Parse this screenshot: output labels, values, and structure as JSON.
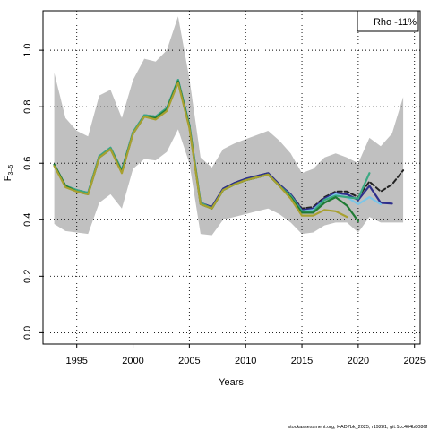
{
  "chart_data": {
    "type": "line",
    "xlabel": "Years",
    "ylabel_main": "F",
    "ylabel_sub": "3–5",
    "legend_text": "Rho -11%",
    "footer": "stockassessment.org, HAD7bk_2025, r19281, git:1cc464b8086f",
    "xlim": [
      1992,
      2025.5
    ],
    "ylim": [
      -0.04,
      1.14
    ],
    "x_ticks": [
      1995,
      2000,
      2005,
      2010,
      2015,
      2020,
      2025
    ],
    "y_ticks": [
      0.0,
      0.2,
      0.4,
      0.6,
      0.8,
      1.0
    ],
    "grid": true,
    "band": {
      "color": "#c0c0c0",
      "x": [
        1993,
        1994,
        1995,
        1996,
        1997,
        1998,
        1999,
        2000,
        2001,
        2002,
        2003,
        2004,
        2005,
        2006,
        2007,
        2008,
        2009,
        2010,
        2011,
        2012,
        2013,
        2014,
        2015,
        2016,
        2017,
        2018,
        2019,
        2020,
        2021,
        2022,
        2023,
        2024
      ],
      "lower": [
        0.385,
        0.36,
        0.355,
        0.35,
        0.46,
        0.49,
        0.44,
        0.58,
        0.615,
        0.61,
        0.64,
        0.72,
        0.6,
        0.35,
        0.345,
        0.4,
        0.41,
        0.42,
        0.43,
        0.44,
        0.42,
        0.39,
        0.35,
        0.355,
        0.38,
        0.39,
        0.39,
        0.355,
        0.41,
        0.39,
        0.39,
        0.39
      ],
      "upper": [
        0.92,
        0.76,
        0.715,
        0.695,
        0.84,
        0.86,
        0.76,
        0.895,
        0.97,
        0.96,
        1.0,
        1.12,
        0.9,
        0.62,
        0.585,
        0.65,
        0.67,
        0.685,
        0.7,
        0.715,
        0.68,
        0.635,
        0.565,
        0.58,
        0.62,
        0.635,
        0.62,
        0.6,
        0.69,
        0.66,
        0.705,
        0.835
      ]
    },
    "series": [
      {
        "color": "#222222",
        "dashed": true,
        "x": [
          1993,
          1994,
          1995,
          1996,
          1997,
          1998,
          1999,
          2000,
          2001,
          2002,
          2003,
          2004,
          2005,
          2006,
          2007,
          2008,
          2009,
          2010,
          2011,
          2012,
          2013,
          2014,
          2015,
          2016,
          2017,
          2018,
          2019,
          2020,
          2021,
          2022,
          2023,
          2024
        ],
        "y": [
          0.595,
          0.52,
          0.505,
          0.495,
          0.625,
          0.655,
          0.575,
          0.71,
          0.77,
          0.765,
          0.795,
          0.895,
          0.735,
          0.46,
          0.445,
          0.51,
          0.53,
          0.545,
          0.555,
          0.565,
          0.525,
          0.49,
          0.44,
          0.445,
          0.48,
          0.5,
          0.5,
          0.48,
          0.535,
          0.5,
          0.525,
          0.575
        ]
      },
      {
        "color": "#2e2e8c",
        "x": [
          1993,
          1994,
          1995,
          1996,
          1997,
          1998,
          1999,
          2000,
          2001,
          2002,
          2003,
          2004,
          2005,
          2006,
          2007,
          2008,
          2009,
          2010,
          2011,
          2012,
          2013,
          2014,
          2015,
          2016,
          2017,
          2018,
          2019,
          2020,
          2021,
          2022,
          2023
        ],
        "y": [
          0.595,
          0.52,
          0.505,
          0.495,
          0.625,
          0.655,
          0.575,
          0.71,
          0.77,
          0.765,
          0.795,
          0.895,
          0.735,
          0.46,
          0.445,
          0.51,
          0.53,
          0.545,
          0.555,
          0.565,
          0.525,
          0.49,
          0.435,
          0.44,
          0.475,
          0.495,
          0.49,
          0.47,
          0.52,
          0.46,
          0.457
        ]
      },
      {
        "color": "#7cc6e8",
        "x": [
          1993,
          1994,
          1995,
          1996,
          1997,
          1998,
          1999,
          2000,
          2001,
          2002,
          2003,
          2004,
          2005,
          2006,
          2007,
          2008,
          2009,
          2010,
          2011,
          2012,
          2013,
          2014,
          2015,
          2016,
          2017,
          2018,
          2019,
          2020,
          2021,
          2022
        ],
        "y": [
          0.595,
          0.52,
          0.505,
          0.495,
          0.625,
          0.655,
          0.575,
          0.71,
          0.77,
          0.765,
          0.795,
          0.895,
          0.735,
          0.46,
          0.44,
          0.505,
          0.525,
          0.54,
          0.55,
          0.56,
          0.52,
          0.485,
          0.43,
          0.435,
          0.47,
          0.49,
          0.48,
          0.455,
          0.48,
          0.455
        ]
      },
      {
        "color": "#3aa882",
        "x": [
          1993,
          1994,
          1995,
          1996,
          1997,
          1998,
          1999,
          2000,
          2001,
          2002,
          2003,
          2004,
          2005,
          2006,
          2007,
          2008,
          2009,
          2010,
          2011,
          2012,
          2013,
          2014,
          2015,
          2016,
          2017,
          2018,
          2019,
          2020,
          2021
        ],
        "y": [
          0.595,
          0.52,
          0.505,
          0.495,
          0.625,
          0.655,
          0.575,
          0.71,
          0.77,
          0.765,
          0.795,
          0.895,
          0.735,
          0.46,
          0.44,
          0.505,
          0.525,
          0.54,
          0.55,
          0.56,
          0.52,
          0.485,
          0.43,
          0.43,
          0.47,
          0.485,
          0.48,
          0.475,
          0.565
        ]
      },
      {
        "color": "#1f7a34",
        "x": [
          1993,
          1994,
          1995,
          1996,
          1997,
          1998,
          1999,
          2000,
          2001,
          2002,
          2003,
          2004,
          2005,
          2006,
          2007,
          2008,
          2009,
          2010,
          2011,
          2012,
          2013,
          2014,
          2015,
          2016,
          2017,
          2018,
          2019,
          2020
        ],
        "y": [
          0.595,
          0.52,
          0.5,
          0.49,
          0.62,
          0.65,
          0.57,
          0.705,
          0.765,
          0.76,
          0.79,
          0.89,
          0.73,
          0.455,
          0.44,
          0.505,
          0.525,
          0.54,
          0.55,
          0.56,
          0.52,
          0.48,
          0.425,
          0.425,
          0.46,
          0.48,
          0.45,
          0.395
        ]
      },
      {
        "color": "#a8a030",
        "x": [
          1993,
          1994,
          1995,
          1996,
          1997,
          1998,
          1999,
          2000,
          2001,
          2002,
          2003,
          2004,
          2005,
          2006,
          2007,
          2008,
          2009,
          2010,
          2011,
          2012,
          2013,
          2014,
          2015,
          2016,
          2017,
          2018,
          2019
        ],
        "y": [
          0.59,
          0.515,
          0.5,
          0.49,
          0.62,
          0.65,
          0.565,
          0.705,
          0.765,
          0.755,
          0.785,
          0.885,
          0.725,
          0.455,
          0.44,
          0.505,
          0.525,
          0.54,
          0.55,
          0.56,
          0.52,
          0.475,
          0.415,
          0.415,
          0.435,
          0.43,
          0.41
        ]
      }
    ]
  }
}
